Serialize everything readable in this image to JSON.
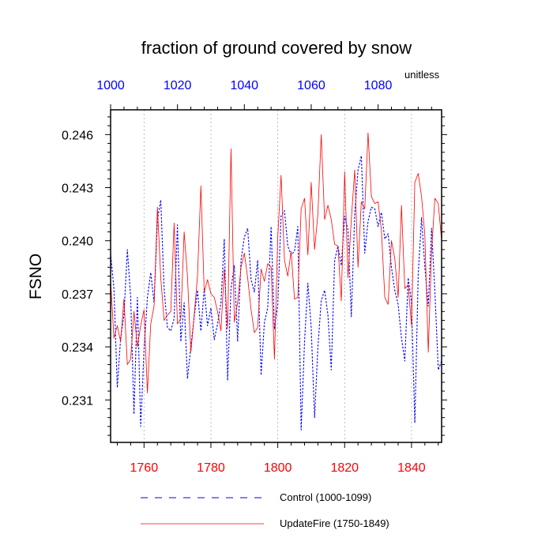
{
  "chart_data": {
    "type": "line",
    "title": "fraction of ground covered by snow",
    "units_label": "unitless",
    "ylabel": "FSNO",
    "ylim": [
      0.2286,
      0.2474
    ],
    "yticks": [
      0.231,
      0.234,
      0.237,
      0.24,
      0.243,
      0.246
    ],
    "ytick_labels": [
      "0.231",
      "0.234",
      "0.237",
      "0.240",
      "0.243",
      "0.246"
    ],
    "bottom_axis": {
      "range": [
        1750,
        1849
      ],
      "ticks": [
        1760,
        1780,
        1800,
        1820,
        1840
      ],
      "tick_labels": [
        "1760",
        "1780",
        "1800",
        "1820",
        "1840"
      ],
      "color": "#ff0000"
    },
    "top_axis": {
      "range": [
        1000,
        1099
      ],
      "ticks": [
        1000,
        1020,
        1040,
        1060,
        1080
      ],
      "tick_labels": [
        "1000",
        "1020",
        "1040",
        "1060",
        "1080"
      ],
      "color": "#0000ff"
    },
    "grid": "vertical dashed at bottom-axis ticks",
    "legend_position": "bottom",
    "series": [
      {
        "name": "Control (1000-1099)",
        "axis": "top",
        "color": "#0000ff",
        "style": "dashed",
        "x_start": 1000,
        "values": [
          0.2393,
          0.2373,
          0.2317,
          0.2345,
          0.2358,
          0.2395,
          0.2368,
          0.2302,
          0.2368,
          0.2295,
          0.2338,
          0.2368,
          0.2382,
          0.2365,
          0.2412,
          0.2423,
          0.2373,
          0.2351,
          0.2349,
          0.2356,
          0.2409,
          0.2343,
          0.2365,
          0.2322,
          0.234,
          0.2357,
          0.2372,
          0.2349,
          0.2373,
          0.2352,
          0.2362,
          0.2344,
          0.2353,
          0.2365,
          0.2401,
          0.2321,
          0.2373,
          0.2386,
          0.2343,
          0.2389,
          0.2402,
          0.2407,
          0.2378,
          0.2371,
          0.2389,
          0.2324,
          0.2354,
          0.2362,
          0.2408,
          0.235,
          0.2364,
          0.2414,
          0.2417,
          0.2397,
          0.2392,
          0.2394,
          0.2408,
          0.2293,
          0.2343,
          0.2376,
          0.2351,
          0.23,
          0.234,
          0.2366,
          0.2372,
          0.2358,
          0.2327,
          0.2389,
          0.2397,
          0.2386,
          0.2414,
          0.2406,
          0.2357,
          0.2415,
          0.244,
          0.2448,
          0.2393,
          0.2411,
          0.2419,
          0.2418,
          0.2408,
          0.2416,
          0.2401,
          0.2404,
          0.2385,
          0.2372,
          0.2364,
          0.2345,
          0.2332,
          0.2379,
          0.2365,
          0.2297,
          0.2381,
          0.2413,
          0.2385,
          0.2363,
          0.2407,
          0.2371,
          0.2327,
          0.2332
        ]
      },
      {
        "name": "UpdateFire (1750-1849)",
        "axis": "bottom",
        "color": "#ff0000",
        "style": "solid",
        "x_start": 1750,
        "values": [
          0.2378,
          0.2345,
          0.2352,
          0.2343,
          0.2367,
          0.233,
          0.2333,
          0.236,
          0.234,
          0.2352,
          0.2361,
          0.2314,
          0.2353,
          0.2363,
          0.2419,
          0.2379,
          0.2355,
          0.2358,
          0.236,
          0.241,
          0.2353,
          0.2356,
          0.2405,
          0.238,
          0.2337,
          0.2358,
          0.238,
          0.2431,
          0.2371,
          0.2378,
          0.237,
          0.2368,
          0.236,
          0.2349,
          0.2384,
          0.235,
          0.2452,
          0.2354,
          0.2365,
          0.2385,
          0.2393,
          0.2379,
          0.2361,
          0.2348,
          0.2351,
          0.2384,
          0.2377,
          0.2387,
          0.2385,
          0.2333,
          0.2402,
          0.2437,
          0.2389,
          0.238,
          0.2394,
          0.2367,
          0.2368,
          0.2418,
          0.2424,
          0.2392,
          0.2433,
          0.2395,
          0.2415,
          0.246,
          0.2412,
          0.242,
          0.2412,
          0.2398,
          0.2397,
          0.2366,
          0.2439,
          0.2379,
          0.2412,
          0.244,
          0.2385,
          0.2422,
          0.2418,
          0.2461,
          0.2425,
          0.2421,
          0.2422,
          0.2406,
          0.2368,
          0.2364,
          0.24,
          0.239,
          0.2368,
          0.242,
          0.2373,
          0.2375,
          0.2352,
          0.2433,
          0.2438,
          0.2425,
          0.2403,
          0.2337,
          0.2394,
          0.2424,
          0.2421,
          0.24
        ]
      }
    ]
  }
}
